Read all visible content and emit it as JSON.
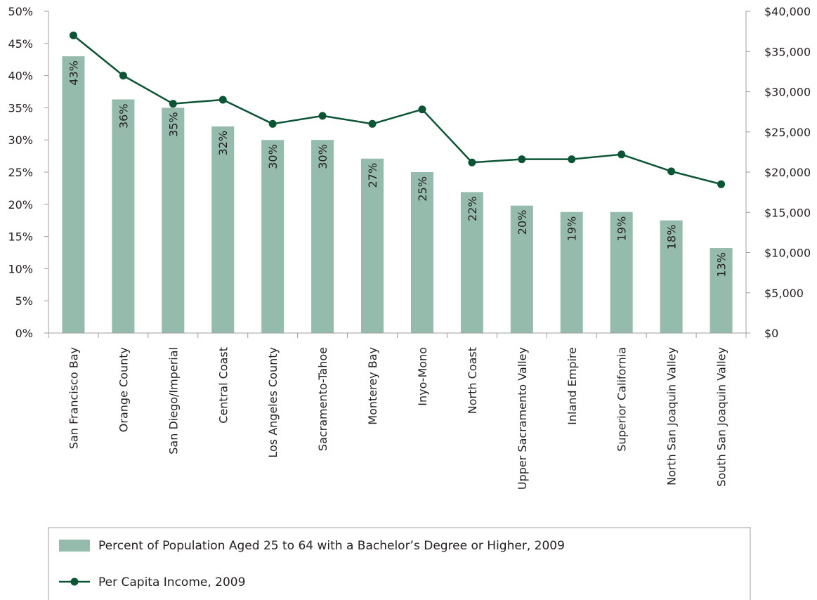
{
  "chart_data": {
    "type": "bar",
    "categories": [
      "San Francisco Bay",
      "Orange County",
      "San Diego/Imperial",
      "Central Coast",
      "Los Angeles County",
      "Sacramento-Tahoe",
      "Monterey Bay",
      "Inyo-Mono",
      "North Coast",
      "Upper Sacramento Valley",
      "Inland Empire",
      "Superior California",
      "North San Joaquin Valley",
      "South San Joaquin Valley"
    ],
    "series": [
      {
        "name": "Percent of Population Aged 25 to 64 with a Bachelor’s Degree or Higher, 2009",
        "type": "bar",
        "axis": "left",
        "values": [
          43,
          36.3,
          35,
          32.1,
          30,
          30,
          27.1,
          25,
          21.9,
          19.8,
          18.8,
          18.8,
          17.5,
          13.2
        ],
        "labels": [
          "43%",
          "36%",
          "35%",
          "32%",
          "30%",
          "30%",
          "27%",
          "25%",
          "22%",
          "20%",
          "19%",
          "19%",
          "18%",
          "13%"
        ],
        "color": "#95bbad"
      },
      {
        "name": "Per Capita Income, 2009",
        "type": "line",
        "axis": "right",
        "values": [
          37000,
          32000,
          28500,
          29000,
          26000,
          27000,
          26000,
          27800,
          21200,
          21600,
          21600,
          22200,
          20100,
          18500
        ],
        "color": "#0b5535"
      }
    ],
    "y_left": {
      "ylim": [
        0,
        50
      ],
      "ticks": [
        "0%",
        "5%",
        "10%",
        "15%",
        "20%",
        "25%",
        "30%",
        "35%",
        "40%",
        "45%",
        "50%"
      ]
    },
    "y_right": {
      "ylim": [
        0,
        40000
      ],
      "ticks": [
        "$0",
        "$5,000",
        "$10,000",
        "$15,000",
        "$20,000",
        "$25,000",
        "$30,000",
        "$35,000",
        "$40,000"
      ]
    },
    "legend": "bottom",
    "grid": false
  }
}
